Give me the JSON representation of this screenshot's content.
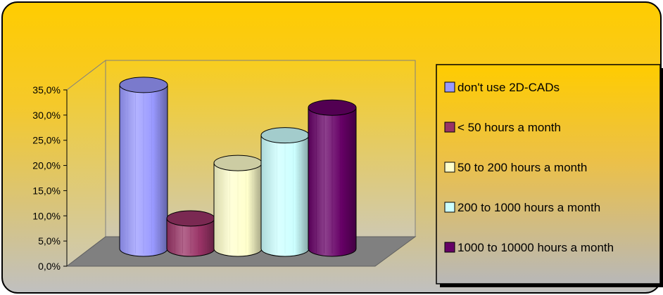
{
  "chart_data": {
    "type": "bar",
    "style": "3d-cylinder",
    "title": "",
    "xlabel": "",
    "ylabel": "",
    "ylim": [
      0,
      35
    ],
    "yticks": [
      "0,0%",
      "5,0%",
      "10,0%",
      "15,0%",
      "20,0%",
      "25,0%",
      "30,0%",
      "35,0%"
    ],
    "series": [
      {
        "name": "don't use 2D-CADs",
        "value": 32.5,
        "color": "#9999ff"
      },
      {
        "name": "< 50 hours a month",
        "value": 6.0,
        "color": "#993366"
      },
      {
        "name": "50 to 200 hours a month",
        "value": 17.0,
        "color": "#ffffcc"
      },
      {
        "name": "200 to 1000 hours a month",
        "value": 22.5,
        "color": "#ccffff"
      },
      {
        "name": "1000 to 10000 hours a month",
        "value": 28.0,
        "color": "#660066"
      }
    ],
    "legend_position": "right",
    "grid": false,
    "background": {
      "top": "#ffcc00",
      "bottom": "#c0c0c0"
    }
  }
}
